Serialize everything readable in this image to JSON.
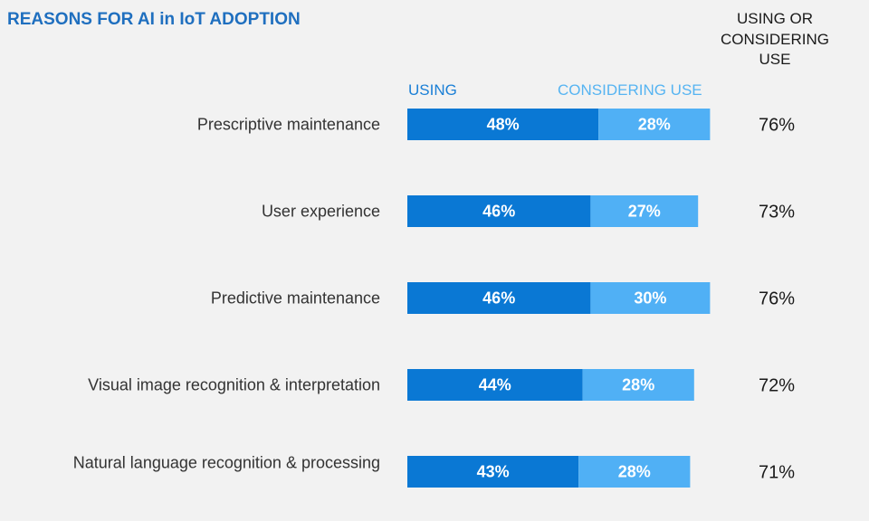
{
  "chart_data": {
    "type": "bar",
    "orientation": "horizontal",
    "stacked": true,
    "title": "REASONS FOR AI in IoT ADOPTION",
    "total_header": [
      "USING OR",
      "CONSIDERING",
      "USE"
    ],
    "legend": [
      "USING",
      "CONSIDERING USE"
    ],
    "categories": [
      "Prescriptive maintenance",
      "User experience",
      "Predictive maintenance",
      "Visual image recognition & interpretation",
      "Natural language recognition & processing"
    ],
    "series": [
      {
        "name": "USING",
        "color": "#0a78d4",
        "values": [
          48,
          46,
          46,
          44,
          43
        ],
        "labels": [
          "48%",
          "46%",
          "46%",
          "44%",
          "43%"
        ]
      },
      {
        "name": "CONSIDERING USE",
        "color": "#50b0f5",
        "values": [
          28,
          27,
          30,
          28,
          28
        ],
        "labels": [
          "28%",
          "27%",
          "30%",
          "28%",
          "28%"
        ]
      }
    ],
    "totals": [
      "76%",
      "73%",
      "76%",
      "72%",
      "71%"
    ],
    "xlim": [
      0,
      100
    ]
  }
}
